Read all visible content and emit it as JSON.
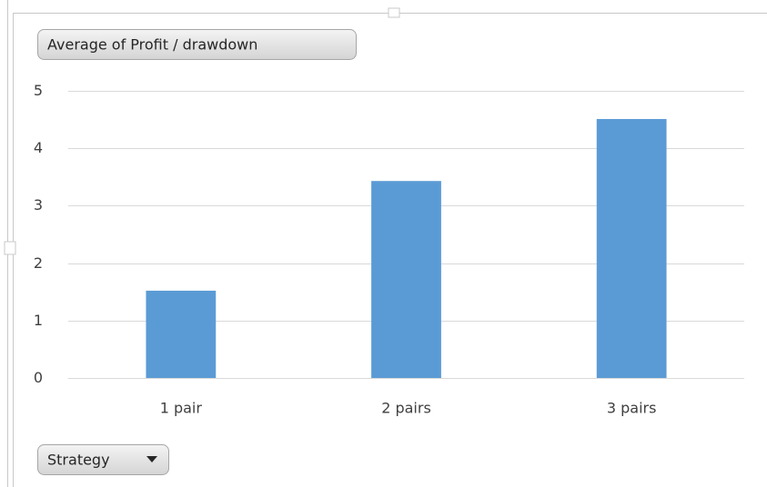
{
  "chart_data": {
    "type": "bar",
    "value_field_button": "Average of Profit / drawdown",
    "axis_field_button": "Strategy",
    "categories": [
      "1 pair",
      "2 pairs",
      "3 pairs"
    ],
    "values": [
      1.52,
      3.43,
      4.51
    ],
    "color": "#5b9bd5",
    "ylim": [
      0,
      5
    ],
    "yticks": [
      0,
      1,
      2,
      3,
      4,
      5
    ],
    "grid": true
  }
}
